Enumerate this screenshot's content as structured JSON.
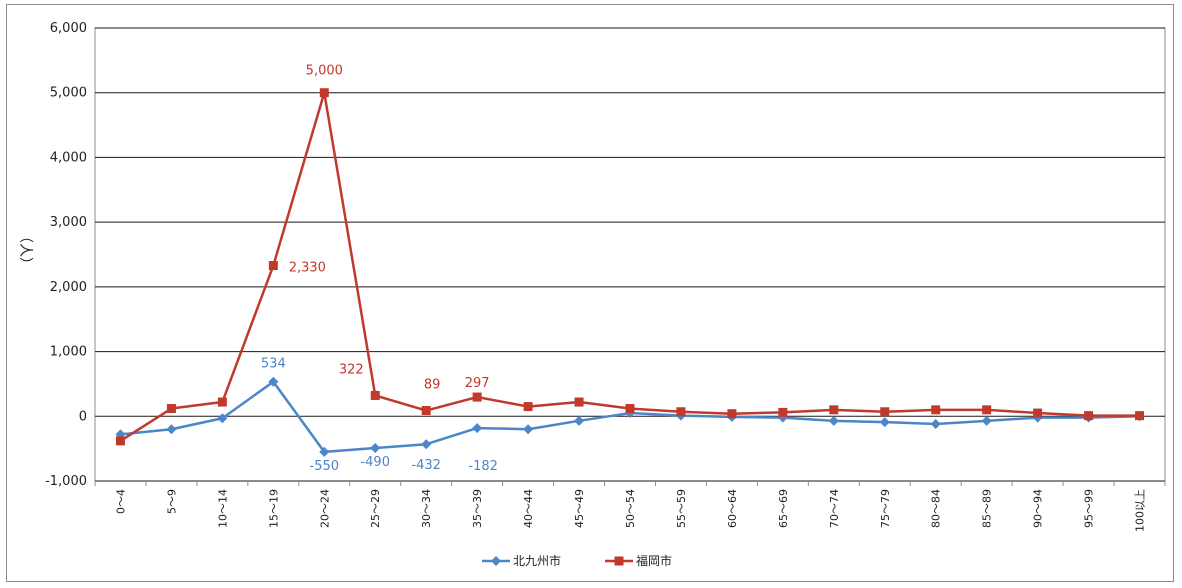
{
  "chart_data": {
    "type": "line",
    "ylabel": "（人）",
    "ylim": [
      -1000,
      6000
    ],
    "yticks": [
      -1000,
      0,
      1000,
      2000,
      3000,
      4000,
      5000,
      6000
    ],
    "ytick_labels": [
      "-1,000",
      "0",
      "1,000",
      "2,000",
      "3,000",
      "4,000",
      "5,000",
      "6,000"
    ],
    "grid": true,
    "legend_position": "bottom",
    "categories": [
      "0～4",
      "5～9",
      "10～14",
      "15～19",
      "20～24",
      "25～29",
      "30～34",
      "35～39",
      "40～44",
      "45～49",
      "50～54",
      "55～59",
      "60～64",
      "65～69",
      "70～74",
      "75～79",
      "80～84",
      "85～89",
      "90～94",
      "95～99",
      "100以上"
    ],
    "series": [
      {
        "name": "北九州市",
        "color": "#4a86c8",
        "marker": "diamond",
        "values": [
          -280,
          -200,
          -30,
          534,
          -550,
          -490,
          -432,
          -182,
          -200,
          -70,
          50,
          10,
          -10,
          -20,
          -70,
          -90,
          -120,
          -70,
          -20,
          -20,
          0
        ],
        "labels": {
          "3": "534",
          "4": "-550",
          "5": "-490",
          "6": "-432",
          "7": "-182"
        }
      },
      {
        "name": "福岡市",
        "color": "#c0392b",
        "marker": "square",
        "values": [
          -380,
          120,
          220,
          2330,
          5000,
          322,
          89,
          297,
          150,
          220,
          120,
          70,
          40,
          60,
          100,
          70,
          100,
          100,
          50,
          10,
          10
        ],
        "labels": {
          "3": "2,330",
          "4": "5,000",
          "5": "322",
          "6": "89",
          "7": "297"
        }
      }
    ]
  }
}
